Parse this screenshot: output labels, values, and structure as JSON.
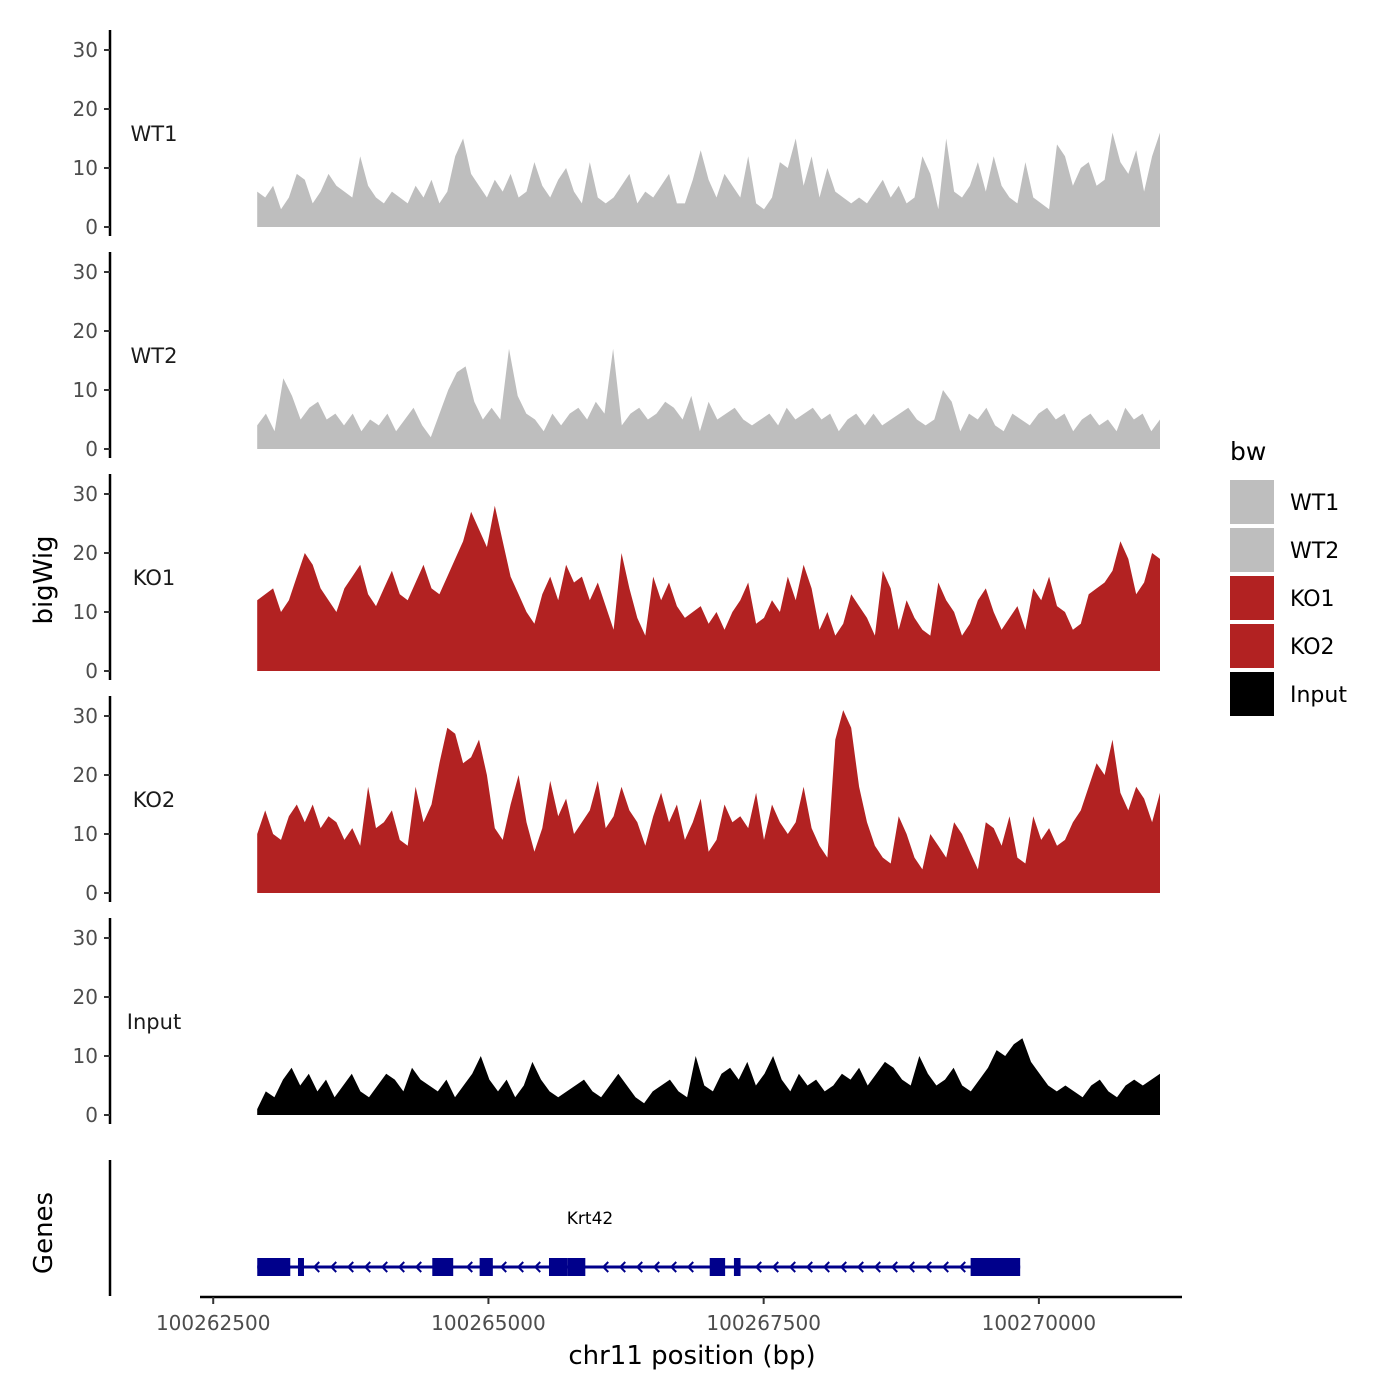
{
  "chart_data": {
    "type": "area",
    "ylabel": "bigWig",
    "xlabel": "chr11 position (bp)",
    "genes_label": "Genes",
    "ylim": [
      0,
      32
    ],
    "yticks": [
      0,
      10,
      20,
      30
    ],
    "xlim": [
      100262380,
      100271300
    ],
    "xticks": [
      100262500,
      100265000,
      100267500,
      100270000
    ],
    "xtick_labels": [
      "100262500",
      "100265000",
      "100267500",
      "100270000"
    ],
    "x_range": [
      100262900,
      100271100
    ],
    "legend": {
      "title": "bw",
      "position": "right",
      "entries": [
        {
          "label": "WT1",
          "color": "#BEBEBE"
        },
        {
          "label": "WT2",
          "color": "#BEBEBE"
        },
        {
          "label": "KO1",
          "color": "#B22222"
        },
        {
          "label": "KO2",
          "color": "#B22222"
        },
        {
          "label": "Input",
          "color": "#000000"
        }
      ]
    },
    "series": [
      {
        "name": "WT1",
        "color": "#BEBEBE",
        "values": [
          6,
          5,
          7,
          3,
          5,
          9,
          8,
          4,
          6,
          9,
          7,
          6,
          5,
          12,
          7,
          5,
          4,
          6,
          5,
          4,
          7,
          5,
          8,
          4,
          6,
          12,
          15,
          9,
          7,
          5,
          8,
          6,
          9,
          5,
          6,
          11,
          7,
          5,
          8,
          10,
          6,
          4,
          11,
          5,
          4,
          5,
          7,
          9,
          4,
          6,
          5,
          7,
          9,
          4,
          4,
          8,
          13,
          8,
          5,
          9,
          7,
          5,
          12,
          4,
          3,
          5,
          11,
          10,
          15,
          7,
          12,
          5,
          10,
          6,
          5,
          4,
          5,
          4,
          6,
          8,
          5,
          7,
          4,
          5,
          12,
          9,
          3,
          15,
          6,
          5,
          7,
          11,
          6,
          12,
          7,
          5,
          4,
          11,
          5,
          4,
          3,
          14,
          12,
          7,
          10,
          11,
          7,
          8,
          16,
          11,
          9,
          13,
          6,
          12,
          16
        ]
      },
      {
        "name": "WT2",
        "color": "#BEBEBE",
        "values": [
          4,
          6,
          3,
          12,
          9,
          5,
          7,
          8,
          5,
          6,
          4,
          6,
          3,
          5,
          4,
          6,
          3,
          5,
          7,
          4,
          2,
          6,
          10,
          13,
          14,
          8,
          5,
          7,
          5,
          17,
          9,
          6,
          5,
          3,
          6,
          4,
          6,
          7,
          5,
          8,
          6,
          17,
          4,
          6,
          7,
          5,
          6,
          8,
          7,
          5,
          9,
          3,
          8,
          5,
          6,
          7,
          5,
          4,
          5,
          6,
          4,
          7,
          5,
          6,
          7,
          5,
          6,
          3,
          5,
          6,
          4,
          6,
          4,
          5,
          6,
          7,
          5,
          4,
          5,
          10,
          8,
          3,
          6,
          5,
          7,
          4,
          3,
          6,
          5,
          4,
          6,
          7,
          5,
          6,
          3,
          5,
          6,
          4,
          5,
          3,
          7,
          5,
          6,
          3,
          5
        ]
      },
      {
        "name": "KO1",
        "color": "#B22222",
        "values": [
          12,
          13,
          14,
          10,
          12,
          16,
          20,
          18,
          14,
          12,
          10,
          14,
          16,
          18,
          13,
          11,
          14,
          17,
          13,
          12,
          15,
          18,
          14,
          13,
          16,
          19,
          22,
          27,
          24,
          21,
          28,
          22,
          16,
          13,
          10,
          8,
          13,
          16,
          12,
          18,
          15,
          16,
          12,
          15,
          11,
          7,
          20,
          14,
          9,
          6,
          16,
          12,
          15,
          11,
          9,
          10,
          11,
          8,
          10,
          7,
          10,
          12,
          15,
          8,
          9,
          12,
          10,
          16,
          12,
          18,
          14,
          7,
          10,
          6,
          8,
          13,
          11,
          9,
          6,
          17,
          14,
          7,
          12,
          9,
          7,
          6,
          15,
          12,
          10,
          6,
          8,
          12,
          14,
          10,
          7,
          9,
          11,
          7,
          14,
          12,
          16,
          11,
          10,
          7,
          8,
          13,
          14,
          15,
          17,
          22,
          19,
          13,
          15,
          20,
          19
        ]
      },
      {
        "name": "KO2",
        "color": "#B22222",
        "values": [
          10,
          14,
          10,
          9,
          13,
          15,
          12,
          15,
          11,
          13,
          12,
          9,
          11,
          8,
          18,
          11,
          12,
          14,
          9,
          8,
          18,
          12,
          15,
          22,
          28,
          27,
          22,
          23,
          26,
          20,
          11,
          9,
          15,
          20,
          12,
          7,
          11,
          19,
          13,
          16,
          10,
          12,
          14,
          19,
          11,
          13,
          18,
          14,
          12,
          8,
          13,
          17,
          12,
          15,
          9,
          12,
          16,
          7,
          9,
          15,
          12,
          13,
          11,
          17,
          9,
          15,
          12,
          10,
          12,
          18,
          11,
          8,
          6,
          26,
          31,
          28,
          18,
          12,
          8,
          6,
          5,
          13,
          10,
          6,
          4,
          10,
          8,
          6,
          12,
          10,
          7,
          4,
          12,
          11,
          8,
          13,
          6,
          5,
          13,
          9,
          11,
          8,
          9,
          12,
          14,
          18,
          22,
          20,
          26,
          17,
          14,
          18,
          16,
          12,
          17
        ]
      },
      {
        "name": "Input",
        "color": "#000000",
        "values": [
          1,
          4,
          3,
          6,
          8,
          5,
          7,
          4,
          6,
          3,
          5,
          7,
          4,
          3,
          5,
          7,
          6,
          4,
          8,
          6,
          5,
          4,
          6,
          3,
          5,
          7,
          10,
          6,
          4,
          6,
          3,
          5,
          9,
          6,
          4,
          3,
          4,
          5,
          6,
          4,
          3,
          5,
          7,
          5,
          3,
          2,
          4,
          5,
          6,
          4,
          3,
          10,
          5,
          4,
          7,
          8,
          6,
          9,
          5,
          7,
          10,
          6,
          4,
          7,
          5,
          6,
          4,
          5,
          7,
          6,
          8,
          5,
          7,
          9,
          8,
          6,
          5,
          10,
          7,
          5,
          6,
          8,
          5,
          4,
          6,
          8,
          11,
          10,
          12,
          13,
          9,
          7,
          5,
          4,
          5,
          4,
          3,
          5,
          6,
          4,
          3,
          5,
          6,
          5,
          6,
          7
        ]
      }
    ],
    "genes": [
      {
        "name": "Krt42",
        "strand": "-",
        "start": 100262900,
        "end": 100269830,
        "exons": [
          [
            100262900,
            100263200
          ],
          [
            100263270,
            100263310
          ],
          [
            100264490,
            100264680
          ],
          [
            100264920,
            100265040
          ],
          [
            100265550,
            100265720
          ],
          [
            100265720,
            100265880
          ],
          [
            100267010,
            100267150
          ],
          [
            100267230,
            100267290
          ],
          [
            100269380,
            100269830
          ]
        ]
      }
    ]
  }
}
